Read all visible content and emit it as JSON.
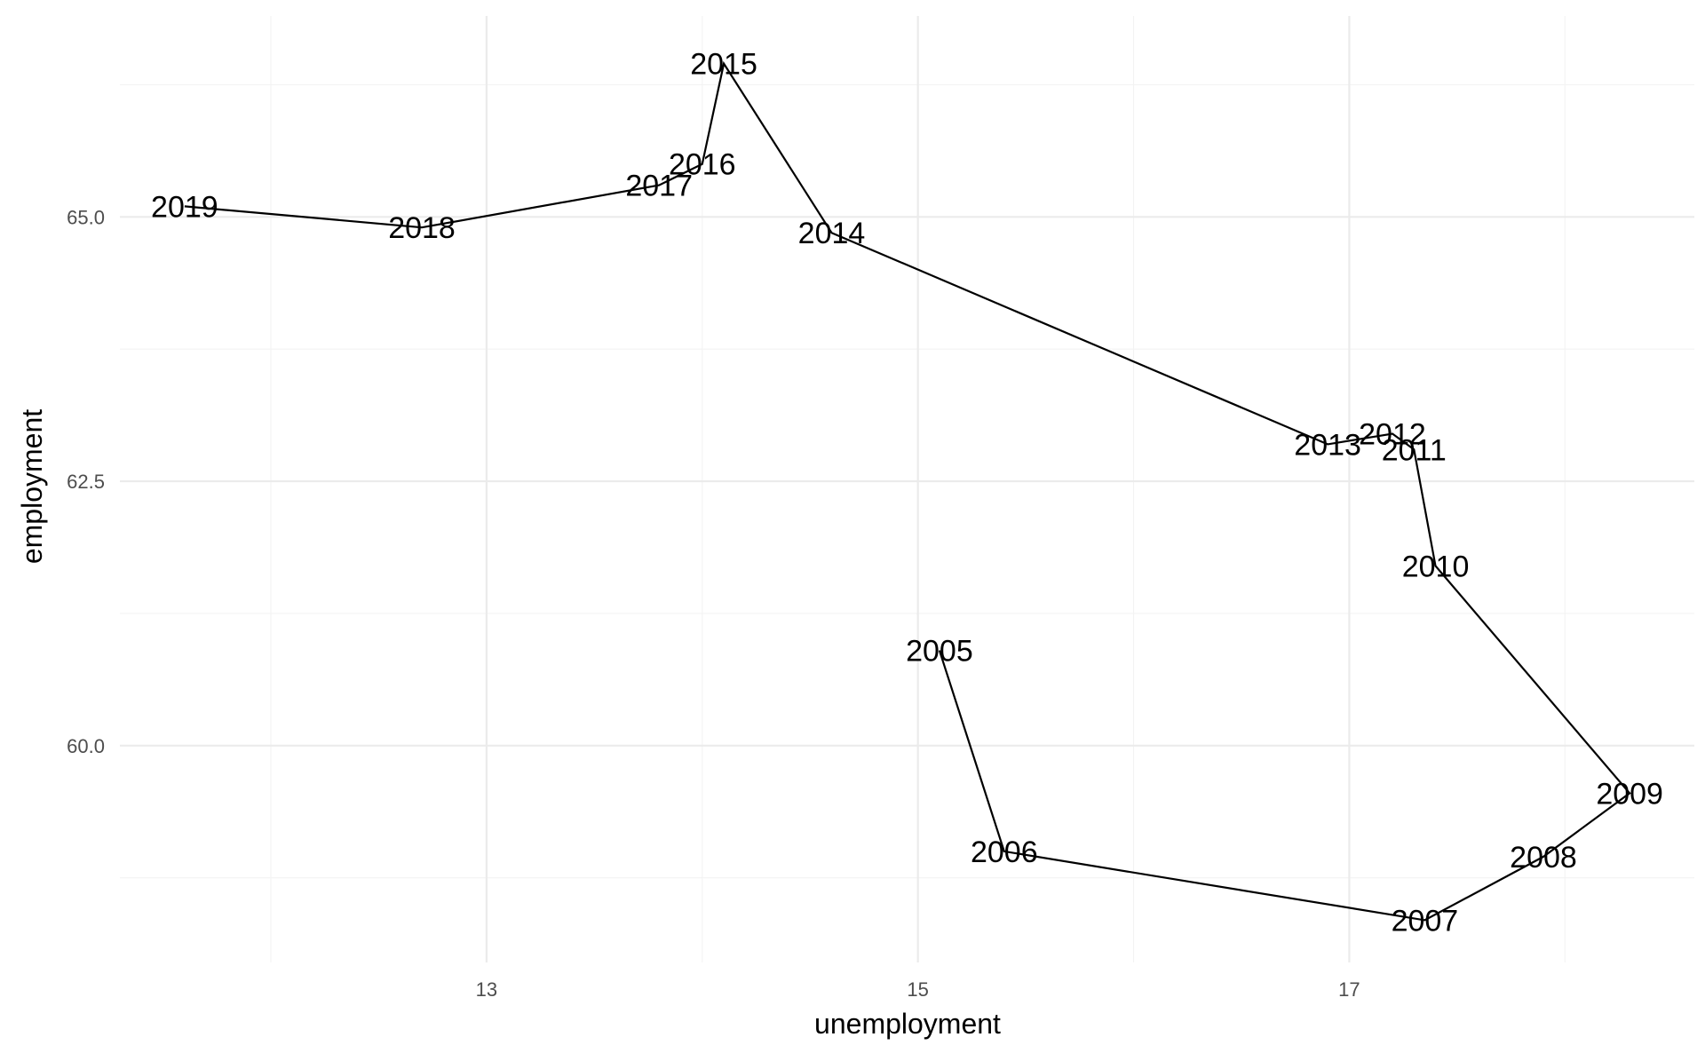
{
  "chart_data": {
    "type": "line",
    "subtype": "connected-scatter",
    "xlabel": "unemployment",
    "ylabel": "employment",
    "xlim": [
      11.3,
      18.6
    ],
    "ylim": [
      57.95,
      66.9
    ],
    "x_ticks": [
      13,
      15,
      17
    ],
    "x_tick_labels": [
      "13",
      "15",
      "17"
    ],
    "y_ticks": [
      60,
      62.5,
      65
    ],
    "y_tick_labels": [
      "60.0",
      "62.5",
      "65.0"
    ],
    "grid": true,
    "legend": "none",
    "colors": {
      "line": "#000000",
      "grid": "#ebebeb",
      "tick_text": "#4d4d4d"
    },
    "points": [
      {
        "label": "2005",
        "x": 15.1,
        "y": 60.9
      },
      {
        "label": "2006",
        "x": 15.4,
        "y": 59.0
      },
      {
        "label": "2007",
        "x": 17.35,
        "y": 58.35
      },
      {
        "label": "2008",
        "x": 17.9,
        "y": 58.95
      },
      {
        "label": "2009",
        "x": 18.3,
        "y": 59.55
      },
      {
        "label": "2010",
        "x": 17.4,
        "y": 61.7
      },
      {
        "label": "2011",
        "x": 17.3,
        "y": 62.8
      },
      {
        "label": "2012",
        "x": 17.2,
        "y": 62.95
      },
      {
        "label": "2013",
        "x": 16.9,
        "y": 62.85
      },
      {
        "label": "2014",
        "x": 14.6,
        "y": 64.85
      },
      {
        "label": "2015",
        "x": 14.1,
        "y": 66.45
      },
      {
        "label": "2016",
        "x": 14.0,
        "y": 65.5
      },
      {
        "label": "2017",
        "x": 13.8,
        "y": 65.3
      },
      {
        "label": "2018",
        "x": 12.7,
        "y": 64.9
      },
      {
        "label": "2019",
        "x": 11.6,
        "y": 65.1
      }
    ]
  }
}
